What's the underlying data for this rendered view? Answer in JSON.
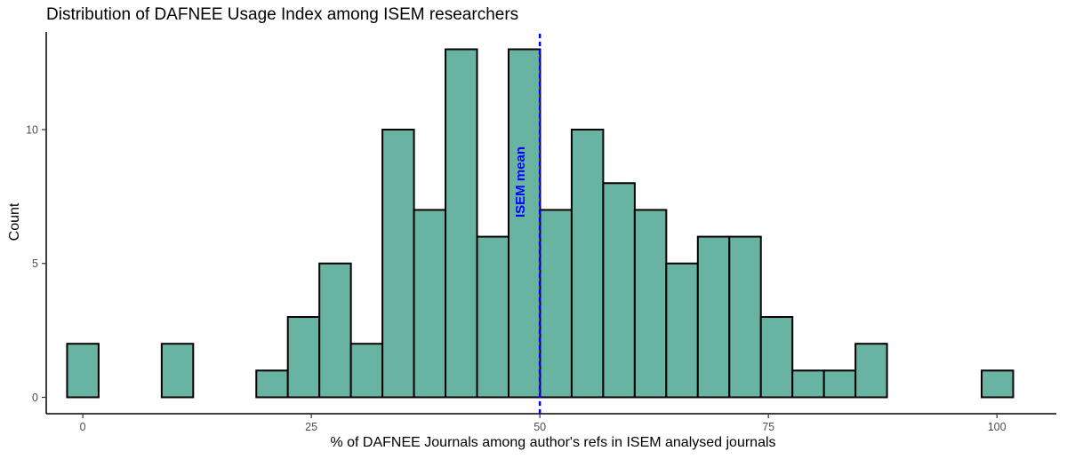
{
  "chart_data": {
    "type": "bar",
    "title": "Distribution of DAFNEE Usage Index among ISEM researchers",
    "xlabel": "% of DAFNEE Journals among author's refs in ISEM analysed journals",
    "ylabel": "Count",
    "xlim": [
      -4,
      106.5
    ],
    "ylim": [
      0,
      13.2
    ],
    "x_ticks": [
      0,
      25,
      50,
      75,
      100
    ],
    "y_ticks": [
      0,
      5,
      10
    ],
    "bin_width": 3.45,
    "bin_start": -1.72,
    "counts": [
      2,
      0,
      0,
      2,
      0,
      0,
      1,
      3,
      5,
      2,
      10,
      7,
      13,
      6,
      13,
      7,
      10,
      8,
      7,
      5,
      6,
      6,
      3,
      1,
      1,
      2,
      0,
      0,
      0,
      1
    ],
    "fill_color": "#69b3a2",
    "edge_color": "#000000",
    "mean": {
      "value": 50,
      "label": "ISEM mean",
      "color": "#0000ff"
    },
    "grid": false,
    "legend": "none"
  }
}
